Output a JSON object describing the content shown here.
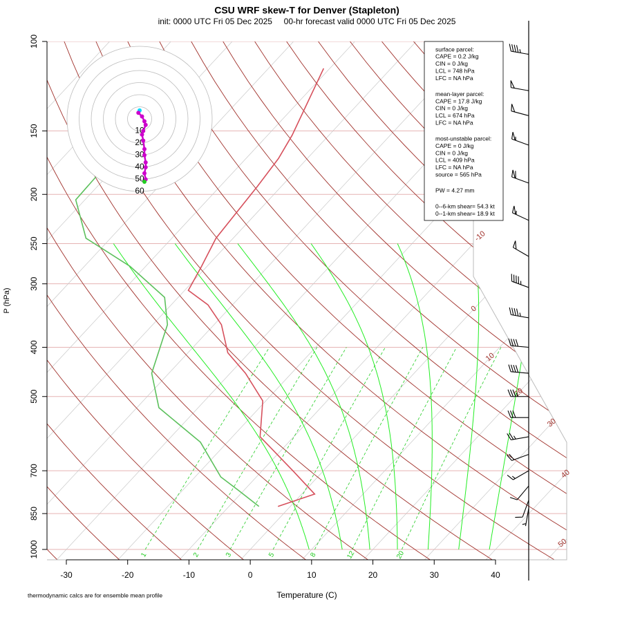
{
  "chart_data": {
    "type": "skewt",
    "title": "CSU WRF skew-T for Denver (Stapleton)",
    "subtitle": "init: 0000 UTC Fri 05 Dec 2025     00-hr forecast valid 0000 UTC Fri 05 Dec 2025",
    "x_label": "Temperature (C)",
    "y_label": "P (hPa)",
    "footnote": "thermodynamic calcs are for ensemble mean profile",
    "log_y": true,
    "ylim": [
      1000,
      100
    ],
    "yticks": [
      100,
      150,
      200,
      250,
      300,
      400,
      500,
      700,
      850,
      1000
    ],
    "xticks": [
      -30,
      -20,
      -10,
      0,
      10,
      20,
      30,
      40
    ],
    "isotherm_labels": [
      -10,
      0,
      10,
      20,
      30,
      40,
      50
    ],
    "mixing_ratio_labels": [
      1,
      2,
      3,
      5,
      8,
      12,
      20
    ],
    "series": [
      {
        "name": "temperature",
        "color": "#d6505c",
        "pressure": [
          823,
          778,
          700,
          600,
          510,
          450,
          410,
          361,
          330,
          309,
          277,
          244,
          193,
          170,
          153,
          113
        ],
        "values": [
          -2.0,
          2.1,
          -5,
          -15.5,
          -20.5,
          -27.5,
          -33.5,
          -38.8,
          -44,
          -49.4,
          -50.9,
          -52.8,
          -53.9,
          -54.7,
          -56,
          -61
        ]
      },
      {
        "name": "dewpoint",
        "color": "#5cc05c",
        "pressure": [
          823,
          766,
          720,
          615,
          526,
          450,
          361,
          319,
          277,
          244,
          205,
          184
        ],
        "values": [
          -5.1,
          -10.8,
          -15.8,
          -24.4,
          -36.4,
          -42.8,
          -47.6,
          -52.2,
          -62.6,
          -74,
          -81.5,
          -81.7
        ]
      }
    ],
    "wind": {
      "pressure": [
        106,
        125,
        140,
        160,
        190,
        225,
        265,
        305,
        350,
        400,
        450,
        500,
        550,
        600,
        650,
        700,
        750,
        800,
        830
      ],
      "speed": [
        45,
        50,
        50,
        55,
        60,
        55,
        50,
        45,
        45,
        40,
        40,
        35,
        30,
        25,
        20,
        15,
        10,
        10,
        5
      ],
      "direction": [
        280,
        280,
        285,
        290,
        290,
        295,
        300,
        290,
        280,
        275,
        275,
        270,
        270,
        260,
        250,
        240,
        220,
        200,
        190
      ]
    },
    "hodograph": {
      "rings": [
        10,
        20,
        30,
        40,
        50,
        60
      ],
      "u": [
        0,
        -1,
        2,
        4,
        5,
        3,
        2,
        3,
        4,
        4,
        5,
        5,
        4,
        5,
        4
      ],
      "v": [
        7,
        5,
        2,
        -2,
        -5,
        -10,
        -13,
        -18,
        -25,
        -30,
        -36,
        -40,
        -45,
        -50,
        -52
      ]
    },
    "stats": [
      [
        "surface parcel:",
        "CAPE = 0.2 J/kg",
        "CIN = 0 J/kg",
        "LCL = 748 hPa",
        "LFC = NA hPa"
      ],
      [
        "mean-layer parcel:",
        "CAPE = 17.8 J/kg",
        "CIN = 0 J/kg",
        "LCL = 674 hPa",
        "LFC = NA hPa"
      ],
      [
        "most-unstable parcel:",
        "CAPE = 0 J/kg",
        "CIN = 0 J/kg",
        "LCL = 409 hPa",
        "LFC = NA hPa",
        "source = 565 hPa"
      ],
      [
        "PW =  4.27 mm"
      ],
      [
        "0--6-km shear= 54.3 kt",
        "0--1-km shear= 18.9 kt"
      ]
    ]
  }
}
